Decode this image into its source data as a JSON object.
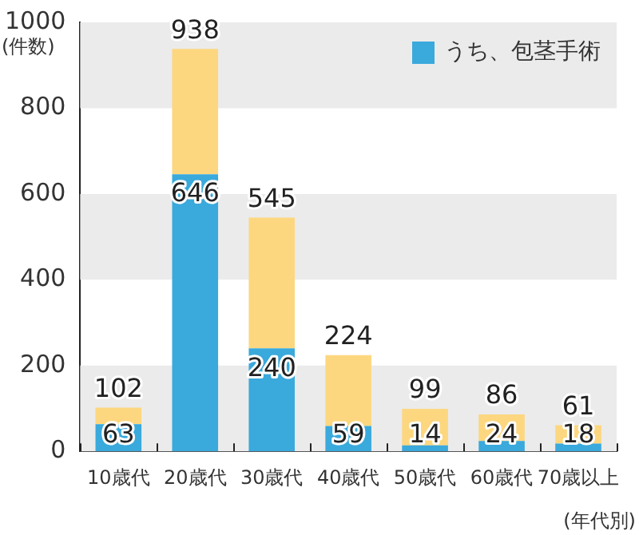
{
  "chart_data": {
    "type": "bar",
    "xlabel": "(年代別)",
    "ylabel": "(件数)",
    "stacked": true,
    "categories": [
      "10歳代",
      "20歳代",
      "30歳代",
      "40歳代",
      "50歳代",
      "60歳代",
      "70歳以上"
    ],
    "series": [
      {
        "name": "うち、包茎手術",
        "color": "#3aa9dc",
        "values": [
          63,
          646,
          240,
          59,
          14,
          24,
          18
        ],
        "value_labels": [
          "63",
          "646",
          "240",
          "59",
          "14",
          "24",
          "18"
        ]
      },
      {
        "color": "#fdd77f",
        "values": [
          39,
          292,
          305,
          165,
          85,
          62,
          43
        ]
      }
    ],
    "totals": [
      "102",
      "938",
      "545",
      "224",
      "99",
      "86",
      "61"
    ],
    "ylim": [
      0,
      1000
    ],
    "yticks": [
      0,
      200,
      400,
      600,
      800,
      1000
    ],
    "bands": [
      {
        "axis": "y",
        "from": 0,
        "to": 200,
        "color": "#ebebeb"
      },
      {
        "axis": "y",
        "from": 400,
        "to": 600,
        "color": "#ebebeb"
      },
      {
        "axis": "y",
        "from": 800,
        "to": 1000,
        "color": "#ebebeb"
      }
    ],
    "legend": "top right",
    "grid": false
  }
}
